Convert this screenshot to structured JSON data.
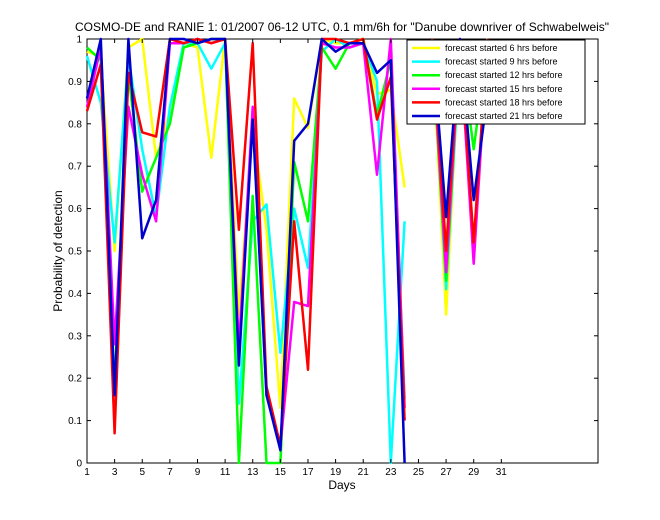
{
  "chart_data": {
    "type": "line",
    "title": "COSMO-DE and RANIE 1: 01/2007 06-12 UTC, 0.1 mm/6h for \"Danube downriver of Schwabelweis\"",
    "xlabel": "Days",
    "ylabel": "Probability of detection",
    "xlim": [
      1,
      38
    ],
    "ylim": [
      0,
      1
    ],
    "xticks": [
      1,
      3,
      5,
      7,
      9,
      11,
      13,
      15,
      17,
      19,
      21,
      23,
      25,
      27,
      29,
      31
    ],
    "yticks": [
      0,
      0.1,
      0.2,
      0.3,
      0.4,
      0.5,
      0.6,
      0.7,
      0.8,
      0.9,
      1
    ],
    "legend_position": "top-right",
    "grid": false,
    "series": [
      {
        "name": "forecast started 6 hrs before",
        "color": "#ffff00",
        "points": [
          [
            1,
            0.97
          ],
          [
            2,
            0.96
          ],
          [
            3,
            0.5
          ],
          [
            4,
            0.98
          ],
          [
            5,
            1.0
          ],
          [
            6,
            0.72
          ],
          [
            7,
            0.83
          ],
          [
            8,
            0.99
          ],
          [
            9,
            0.98
          ],
          [
            10,
            0.72
          ],
          [
            11,
            1.0
          ],
          [
            12,
            0.35
          ],
          [
            13,
            0.79
          ],
          [
            14,
            0.55
          ],
          [
            15,
            0.13
          ],
          [
            16,
            0.86
          ],
          [
            17,
            0.79
          ],
          [
            18,
            1.0
          ],
          [
            19,
            0.99
          ],
          [
            20,
            0.99
          ],
          [
            21,
            1.0
          ],
          [
            22,
            0.87
          ],
          [
            23,
            0.88
          ],
          [
            24,
            0.65
          ],
          [
            null,
            null
          ],
          [
            26,
            0.99
          ],
          [
            27,
            0.35
          ],
          [
            28,
            0.99
          ],
          [
            29,
            0.93
          ],
          [
            30,
            1.0
          ]
        ]
      },
      {
        "name": "forecast started 9 hrs before",
        "color": "#00ffff",
        "points": [
          [
            1,
            0.96
          ],
          [
            2,
            0.85
          ],
          [
            3,
            0.52
          ],
          [
            4,
            0.96
          ],
          [
            5,
            0.74
          ],
          [
            6,
            0.58
          ],
          [
            7,
            0.84
          ],
          [
            8,
            0.99
          ],
          [
            9,
            0.99
          ],
          [
            10,
            0.93
          ],
          [
            11,
            0.99
          ],
          [
            12,
            0.14
          ],
          [
            13,
            0.57
          ],
          [
            14,
            0.61
          ],
          [
            15,
            0.26
          ],
          [
            16,
            0.6
          ],
          [
            17,
            0.46
          ],
          [
            18,
            0.97
          ],
          [
            19,
            1.0
          ],
          [
            20,
            0.98
          ],
          [
            21,
            0.99
          ],
          [
            22,
            0.9
          ],
          [
            23,
            0.0
          ],
          [
            24,
            0.57
          ],
          [
            null,
            null
          ],
          [
            26,
            1.0
          ],
          [
            27,
            0.41
          ],
          [
            28,
            0.97
          ],
          [
            29,
            0.9
          ],
          [
            30,
            1.0
          ]
        ]
      },
      {
        "name": "forecast started 12 hrs before",
        "color": "#00ff00",
        "points": [
          [
            1,
            0.98
          ],
          [
            2,
            0.95
          ],
          [
            3,
            0.18
          ],
          [
            4,
            0.92
          ],
          [
            5,
            0.64
          ],
          [
            6,
            0.72
          ],
          [
            7,
            0.8
          ],
          [
            8,
            0.98
          ],
          [
            9,
            0.99
          ],
          [
            10,
            1.0
          ],
          [
            11,
            1.0
          ],
          [
            12,
            0.0
          ],
          [
            13,
            0.63
          ],
          [
            14,
            0.0
          ],
          [
            15,
            0.0
          ],
          [
            16,
            0.71
          ],
          [
            17,
            0.57
          ],
          [
            18,
            0.98
          ],
          [
            19,
            0.93
          ],
          [
            20,
            0.99
          ],
          [
            21,
            1.0
          ],
          [
            22,
            0.82
          ],
          [
            23,
            0.95
          ],
          [
            24,
            0.15
          ],
          [
            null,
            null
          ],
          [
            26,
            0.98
          ],
          [
            27,
            0.43
          ],
          [
            28,
            0.99
          ],
          [
            29,
            0.74
          ],
          [
            30,
            0.99
          ]
        ]
      },
      {
        "name": "forecast started 15 hrs before",
        "color": "#ff00ff",
        "points": [
          [
            1,
            0.84
          ],
          [
            2,
            0.98
          ],
          [
            3,
            0.28
          ],
          [
            4,
            0.84
          ],
          [
            5,
            0.68
          ],
          [
            6,
            0.57
          ],
          [
            7,
            0.99
          ],
          [
            8,
            0.99
          ],
          [
            9,
            1.0
          ],
          [
            10,
            0.99
          ],
          [
            11,
            1.0
          ],
          [
            12,
            0.27
          ],
          [
            13,
            0.84
          ],
          [
            14,
            0.16
          ],
          [
            15,
            0.04
          ],
          [
            16,
            0.38
          ],
          [
            17,
            0.37
          ],
          [
            18,
            0.99
          ],
          [
            19,
            0.98
          ],
          [
            20,
            0.98
          ],
          [
            21,
            0.99
          ],
          [
            22,
            0.68
          ],
          [
            23,
            1.0
          ],
          [
            24,
            0.13
          ],
          [
            null,
            null
          ],
          [
            26,
            0.99
          ],
          [
            27,
            0.45
          ],
          [
            28,
            0.99
          ],
          [
            29,
            0.47
          ],
          [
            30,
            0.99
          ]
        ]
      },
      {
        "name": "forecast started 18 hrs before",
        "color": "#ff0000",
        "points": [
          [
            1,
            0.83
          ],
          [
            2,
            0.94
          ],
          [
            3,
            0.07
          ],
          [
            4,
            0.92
          ],
          [
            5,
            0.78
          ],
          [
            6,
            0.77
          ],
          [
            7,
            1.0
          ],
          [
            8,
            0.99
          ],
          [
            9,
            1.0
          ],
          [
            10,
            0.99
          ],
          [
            11,
            1.0
          ],
          [
            12,
            0.55
          ],
          [
            13,
            0.99
          ],
          [
            14,
            0.18
          ],
          [
            15,
            0.04
          ],
          [
            16,
            0.57
          ],
          [
            17,
            0.22
          ],
          [
            18,
            1.0
          ],
          [
            19,
            1.0
          ],
          [
            20,
            0.99
          ],
          [
            21,
            1.0
          ],
          [
            22,
            0.81
          ],
          [
            23,
            0.91
          ],
          [
            24,
            0.1
          ],
          [
            null,
            null
          ],
          [
            26,
            1.0
          ],
          [
            27,
            0.5
          ],
          [
            28,
            1.0
          ],
          [
            29,
            0.52
          ],
          [
            30,
            1.0
          ]
        ]
      },
      {
        "name": "forecast started 21 hrs before",
        "color": "#0000cc",
        "points": [
          [
            1,
            0.86
          ],
          [
            2,
            1.0
          ],
          [
            3,
            0.16
          ],
          [
            4,
            1.0
          ],
          [
            5,
            0.53
          ],
          [
            6,
            0.62
          ],
          [
            7,
            1.0
          ],
          [
            8,
            1.0
          ],
          [
            9,
            0.99
          ],
          [
            10,
            1.0
          ],
          [
            11,
            1.0
          ],
          [
            12,
            0.23
          ],
          [
            13,
            0.81
          ],
          [
            14,
            0.16
          ],
          [
            15,
            0.03
          ],
          [
            16,
            0.76
          ],
          [
            17,
            0.8
          ],
          [
            18,
            1.0
          ],
          [
            19,
            0.97
          ],
          [
            20,
            0.99
          ],
          [
            21,
            0.99
          ],
          [
            22,
            0.92
          ],
          [
            23,
            0.95
          ],
          [
            24,
            0.0
          ],
          [
            null,
            null
          ],
          [
            26,
            0.99
          ],
          [
            27,
            0.58
          ],
          [
            28,
            1.0
          ],
          [
            29,
            0.62
          ],
          [
            30,
            0.87
          ]
        ]
      }
    ]
  }
}
